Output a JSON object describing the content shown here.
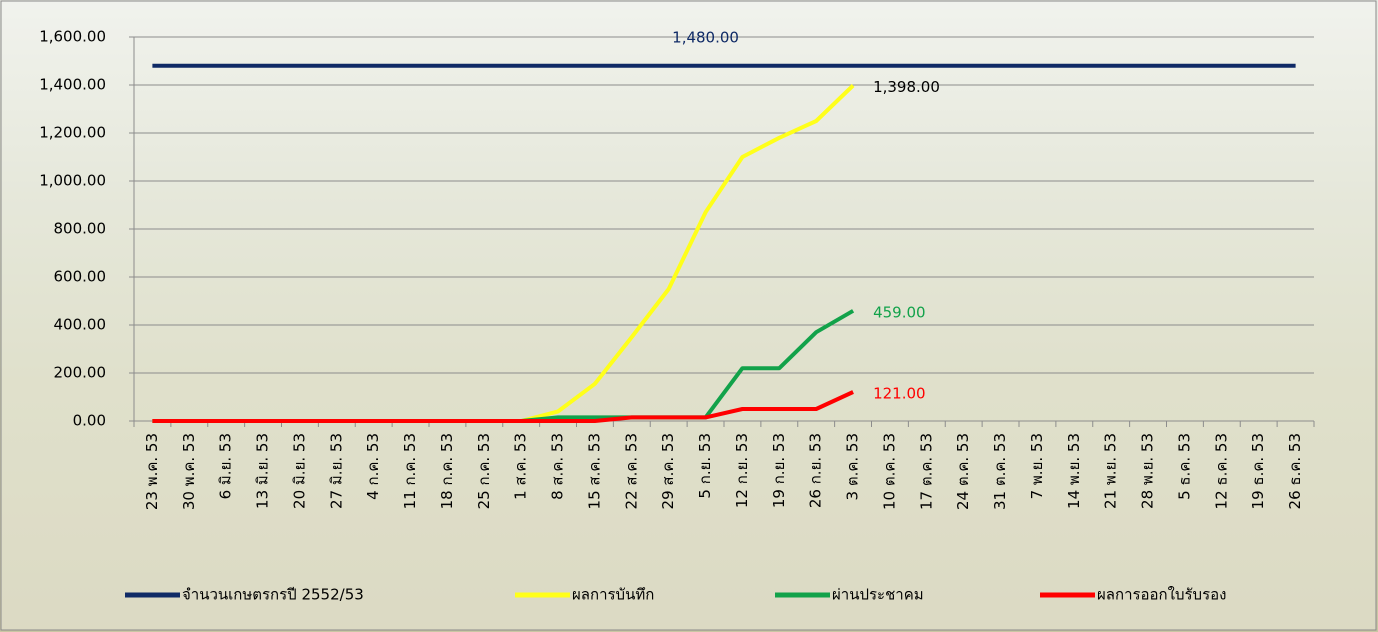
{
  "chart_data": {
    "type": "line",
    "categories": [
      "23 พ.ค. 53",
      "30 พ.ค. 53",
      "6 มิ.ย. 53",
      "13 มิ.ย. 53",
      "20 มิ.ย. 53",
      "27 มิ.ย. 53",
      "4 ก.ค. 53",
      "11 ก.ค. 53",
      "18 ก.ค. 53",
      "25 ก.ค. 53",
      "1 ส.ค. 53",
      "8 ส.ค. 53",
      "15 ส.ค. 53",
      "22 ส.ค. 53",
      "29 ส.ค. 53",
      "5 ก.ย. 53",
      "12 ก.ย. 53",
      "19 ก.ย. 53",
      "26 ก.ย. 53",
      "3 ต.ค. 53",
      "10 ต.ค. 53",
      "17 ต.ค. 53",
      "24 ต.ค. 53",
      "31 ต.ค. 53",
      "7 พ.ย. 53",
      "14 พ.ย. 53",
      "21 พ.ย. 53",
      "28 พ.ย. 53",
      "5 ธ.ค. 53",
      "12 ธ.ค. 53",
      "19 ธ.ค. 53",
      "26 ธ.ค. 53"
    ],
    "series": [
      {
        "name": "จำนวนเกษตรกรปี  2552/53",
        "color": "#0f2a66",
        "values": [
          1480,
          1480,
          1480,
          1480,
          1480,
          1480,
          1480,
          1480,
          1480,
          1480,
          1480,
          1480,
          1480,
          1480,
          1480,
          1480,
          1480,
          1480,
          1480,
          1480,
          1480,
          1480,
          1480,
          1480,
          1480,
          1480,
          1480,
          1480,
          1480,
          1480,
          1480,
          1480
        ],
        "value_labels": [
          null,
          null,
          null,
          null,
          null,
          null,
          null,
          null,
          null,
          null,
          null,
          null,
          null,
          null,
          null,
          "1,480.00",
          null,
          null,
          null,
          null,
          null,
          null,
          null,
          null,
          null,
          null,
          null,
          null,
          null,
          null,
          null,
          null
        ]
      },
      {
        "name": "ผลการบันทึก",
        "color": "#ffff1a",
        "values": [
          0,
          0,
          0,
          0,
          0,
          0,
          0,
          0,
          0,
          0,
          0,
          40,
          155,
          350,
          550,
          870,
          1100,
          1180,
          1250,
          1398,
          null,
          null,
          null,
          null,
          null,
          null,
          null,
          null,
          null,
          null,
          null,
          null
        ],
        "value_labels": [
          null,
          null,
          null,
          null,
          null,
          null,
          null,
          null,
          null,
          null,
          null,
          null,
          null,
          null,
          null,
          null,
          null,
          null,
          null,
          "1,398.00",
          null,
          null,
          null,
          null,
          null,
          null,
          null,
          null,
          null,
          null,
          null,
          null
        ]
      },
      {
        "name": "ผ่านประชาคม",
        "color": "#12a24a",
        "values": [
          0,
          0,
          0,
          0,
          0,
          0,
          0,
          0,
          0,
          0,
          0,
          15,
          15,
          15,
          15,
          15,
          220,
          220,
          370,
          459,
          null,
          null,
          null,
          null,
          null,
          null,
          null,
          null,
          null,
          null,
          null,
          null
        ],
        "value_labels": [
          null,
          null,
          null,
          null,
          null,
          null,
          null,
          null,
          null,
          null,
          null,
          null,
          null,
          null,
          null,
          null,
          null,
          null,
          null,
          "459.00",
          null,
          null,
          null,
          null,
          null,
          null,
          null,
          null,
          null,
          null,
          null,
          null
        ]
      },
      {
        "name": "ผลการออกใบรับรอง",
        "color": "#ff0000",
        "values": [
          0,
          0,
          0,
          0,
          0,
          0,
          0,
          0,
          0,
          0,
          0,
          0,
          0,
          15,
          15,
          15,
          50,
          50,
          50,
          121,
          null,
          null,
          null,
          null,
          null,
          null,
          null,
          null,
          null,
          null,
          null,
          null
        ],
        "value_labels": [
          null,
          null,
          null,
          null,
          null,
          null,
          null,
          null,
          null,
          null,
          null,
          null,
          null,
          null,
          null,
          null,
          null,
          null,
          null,
          "121.00",
          null,
          null,
          null,
          null,
          null,
          null,
          null,
          null,
          null,
          null,
          null,
          null
        ]
      }
    ],
    "label_colors": [
      "#0f2a66",
      "#000000",
      "#12a24a",
      "#ff0000"
    ],
    "ylim": [
      0,
      1600
    ],
    "yticks": [
      {
        "value": 0,
        "label": "0.00"
      },
      {
        "value": 200,
        "label": "200.00"
      },
      {
        "value": 400,
        "label": "400.00"
      },
      {
        "value": 600,
        "label": "600.00"
      },
      {
        "value": 800,
        "label": "800.00"
      },
      {
        "value": 1000,
        "label": "1,000.00"
      },
      {
        "value": 1200,
        "label": "1,200.00"
      },
      {
        "value": 1400,
        "label": "1,400.00"
      },
      {
        "value": 1600,
        "label": "1,600.00"
      }
    ],
    "grid": true,
    "legend": "bottom"
  }
}
